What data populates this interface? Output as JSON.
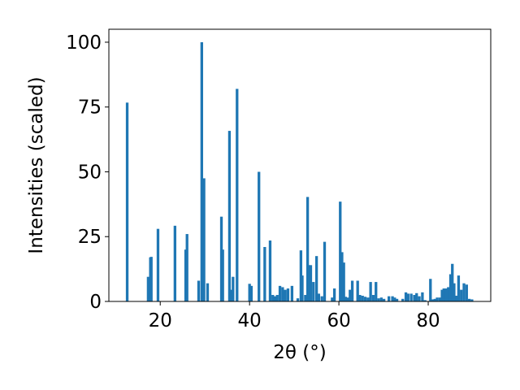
{
  "chart_data": {
    "type": "bar",
    "title": "",
    "xlabel": "2θ (°)",
    "ylabel": "Intensities (scaled)",
    "xlim": [
      8.5,
      94
    ],
    "ylim": [
      0,
      105
    ],
    "xticks": [
      20,
      40,
      60,
      80
    ],
    "yticks": [
      0,
      25,
      50,
      75,
      100
    ],
    "grid": false,
    "bar_width": 0.6,
    "bar_color": "#1f77b4",
    "x": [
      12.6,
      17.3,
      17.8,
      18.0,
      19.5,
      23.3,
      25.7,
      26.0,
      28.6,
      29.3,
      29.8,
      30.6,
      33.7,
      34.0,
      35.5,
      35.8,
      36.3,
      37.2,
      40.0,
      40.4,
      42.1,
      43.4,
      44.6,
      45.2,
      45.7,
      46.2,
      46.8,
      47.4,
      48.0,
      48.6,
      49.5,
      50.8,
      51.5,
      51.8,
      52.5,
      53.0,
      53.3,
      53.7,
      54.3,
      55.0,
      55.5,
      56.2,
      56.8,
      58.5,
      59.0,
      60.3,
      60.7,
      61.1,
      61.5,
      62.0,
      62.5,
      63.0,
      64.2,
      64.7,
      65.3,
      65.9,
      66.5,
      67.1,
      67.7,
      68.3,
      68.9,
      69.5,
      70.1,
      71.2,
      72.0,
      72.5,
      73.0,
      74.3,
      75.0,
      75.5,
      76.2,
      76.9,
      77.4,
      78.0,
      78.7,
      79.3,
      80.5,
      81.0,
      81.5,
      82.0,
      82.6,
      83.1,
      83.5,
      84.0,
      84.5,
      85.0,
      85.4,
      85.8,
      86.3,
      86.8,
      87.4,
      88.0,
      88.6,
      89.2,
      89.8
    ],
    "values": [
      76.7,
      9.5,
      17,
      17.2,
      28,
      29.2,
      20,
      26,
      8,
      100,
      47.5,
      7,
      32.7,
      20,
      65.8,
      4.5,
      9.5,
      82,
      6.8,
      6,
      50,
      21,
      23.5,
      2.5,
      2,
      2.5,
      6,
      5.5,
      4.5,
      5,
      6,
      1.2,
      19.7,
      10,
      2.5,
      40.3,
      14,
      14,
      7.5,
      17.5,
      3,
      2,
      23,
      1.5,
      5,
      38.5,
      19,
      15,
      1.8,
      1.5,
      4.5,
      8,
      8,
      2.5,
      2.2,
      1.8,
      1.5,
      7.5,
      2.5,
      7.5,
      1.2,
      1.5,
      1,
      2,
      2,
      1.5,
      1,
      1,
      3.5,
      3,
      3,
      2.5,
      3.2,
      2,
      3.5,
      0.5,
      8.7,
      0.8,
      1,
      1.5,
      1.5,
      4.5,
      5,
      5,
      5.5,
      10.5,
      14.5,
      7,
      2.2,
      10,
      4.5,
      7,
      6.5,
      1,
      0.8
    ]
  }
}
